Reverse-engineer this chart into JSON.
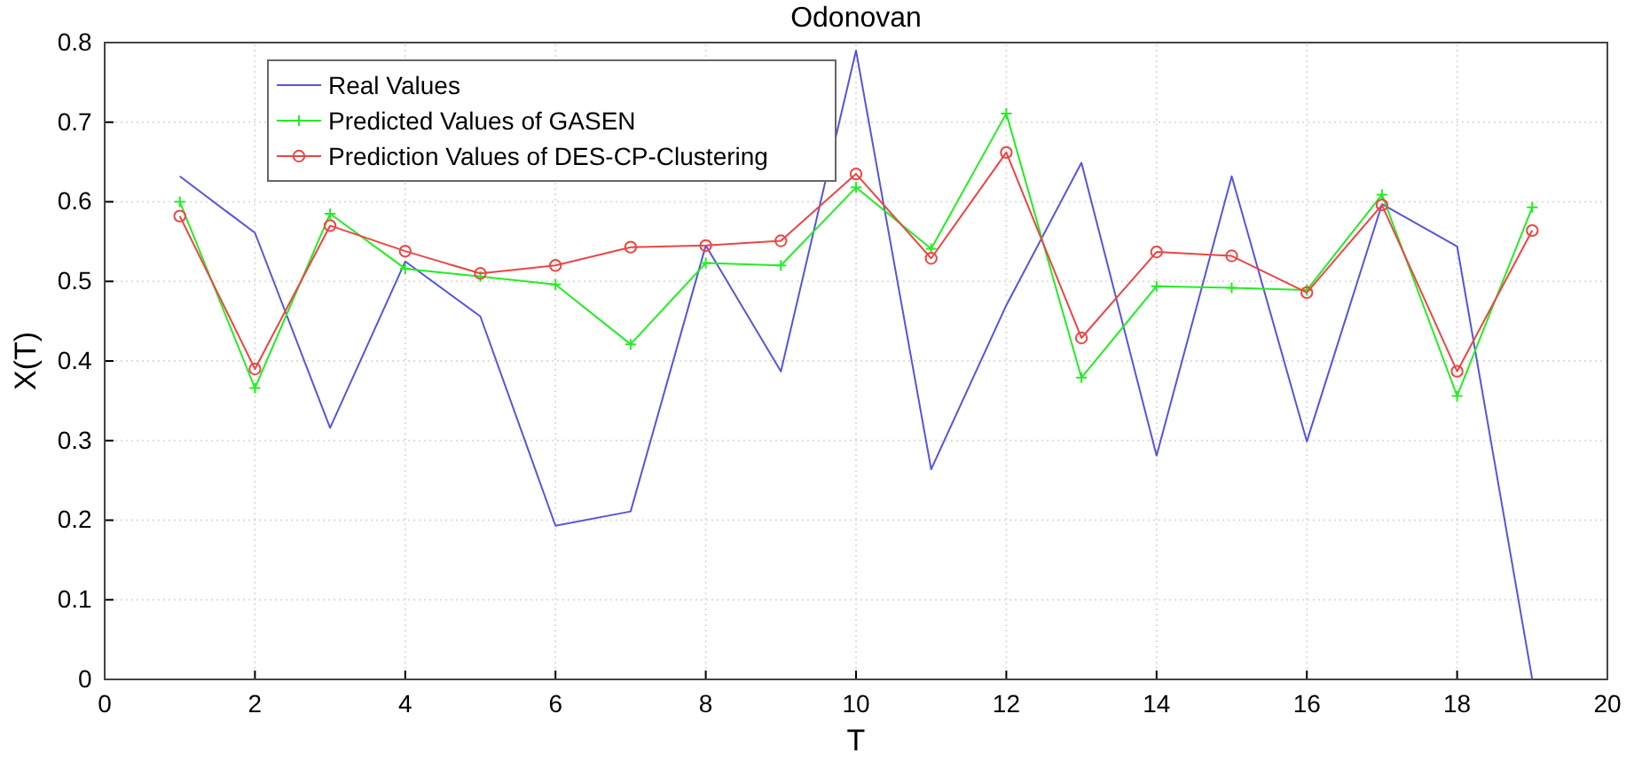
{
  "chart_data": {
    "type": "line",
    "title": "Odonovan",
    "xlabel": "T",
    "ylabel": "X(T)",
    "x": [
      1,
      2,
      3,
      4,
      5,
      6,
      7,
      8,
      9,
      10,
      11,
      12,
      13,
      14,
      15,
      16,
      17,
      18,
      19
    ],
    "xlim": [
      0,
      20
    ],
    "xticks": [
      0,
      2,
      4,
      6,
      8,
      10,
      12,
      14,
      16,
      18,
      20
    ],
    "ylim": [
      0,
      0.8
    ],
    "yticks": [
      0,
      0.1,
      0.2,
      0.3,
      0.4,
      0.5,
      0.6,
      0.7,
      0.8
    ],
    "grid": true,
    "legend": "top left",
    "series": [
      {
        "name": "Real Values",
        "color": "#5555dd",
        "marker": "none",
        "values": [
          0.632,
          0.561,
          0.316,
          0.525,
          0.456,
          0.193,
          0.211,
          0.545,
          0.387,
          0.79,
          0.264,
          0.47,
          0.649,
          0.281,
          0.632,
          0.299,
          0.597,
          0.544,
          0.0
        ]
      },
      {
        "name": "Predicted Values of GASEN",
        "color": "#22ee22",
        "marker": "cross",
        "values": [
          0.6,
          0.366,
          0.585,
          0.516,
          0.506,
          0.496,
          0.421,
          0.523,
          0.52,
          0.618,
          0.541,
          0.711,
          0.379,
          0.494,
          0.492,
          0.489,
          0.609,
          0.356,
          0.593
        ]
      },
      {
        "name": "Prediction Values of DES-CP-Clustering",
        "color": "#ee4444",
        "marker": "circle",
        "values": [
          0.582,
          0.39,
          0.57,
          0.538,
          0.51,
          0.52,
          0.543,
          0.545,
          0.551,
          0.635,
          0.529,
          0.662,
          0.429,
          0.537,
          0.532,
          0.486,
          0.596,
          0.387,
          0.564
        ]
      }
    ]
  }
}
